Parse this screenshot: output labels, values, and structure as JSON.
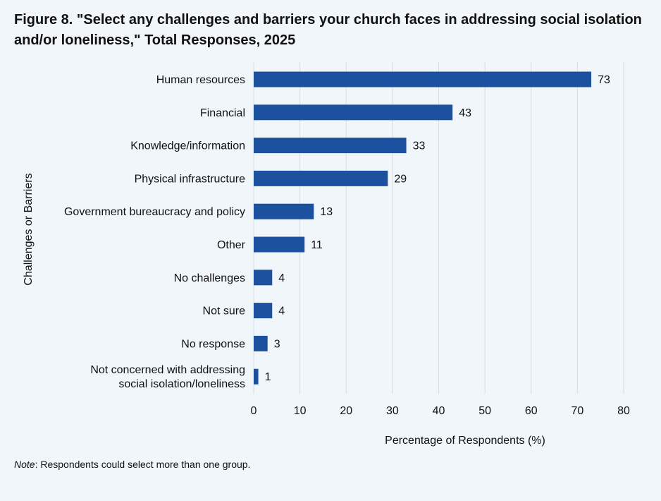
{
  "figure": {
    "title": "Figure 8. \"Select any challenges and barriers your church faces in addressing social isolation and/or loneliness,\" Total Responses, 2025",
    "note_label": "Note",
    "note_text": ": Respondents could select more than one group."
  },
  "colors": {
    "bar": "#1c51a0",
    "grid": "#d5dde3",
    "background": "#f0f6fa"
  },
  "chart_data": {
    "type": "bar",
    "orientation": "horizontal",
    "categories": [
      [
        "Human resources"
      ],
      [
        "Financial"
      ],
      [
        "Knowledge/information"
      ],
      [
        "Physical infrastructure"
      ],
      [
        "Government bureaucracy and policy"
      ],
      [
        "Other"
      ],
      [
        "No challenges"
      ],
      [
        "Not sure"
      ],
      [
        "No response"
      ],
      [
        "Not concerned with addressing",
        "social isolation/loneliness"
      ]
    ],
    "values": [
      73,
      43,
      33,
      29,
      13,
      11,
      4,
      4,
      3,
      1
    ],
    "data_labels": [
      "73",
      "43",
      "33",
      "29",
      "13",
      "11",
      "4",
      "4",
      "3",
      "1"
    ],
    "xlabel": "Percentage of Respondents (%)",
    "ylabel": "Challenges or Barriers",
    "xlim": [
      0,
      80
    ],
    "xticks": [
      0,
      10,
      20,
      30,
      40,
      50,
      60,
      70,
      80
    ],
    "grid": "vertical",
    "legend": "none"
  }
}
